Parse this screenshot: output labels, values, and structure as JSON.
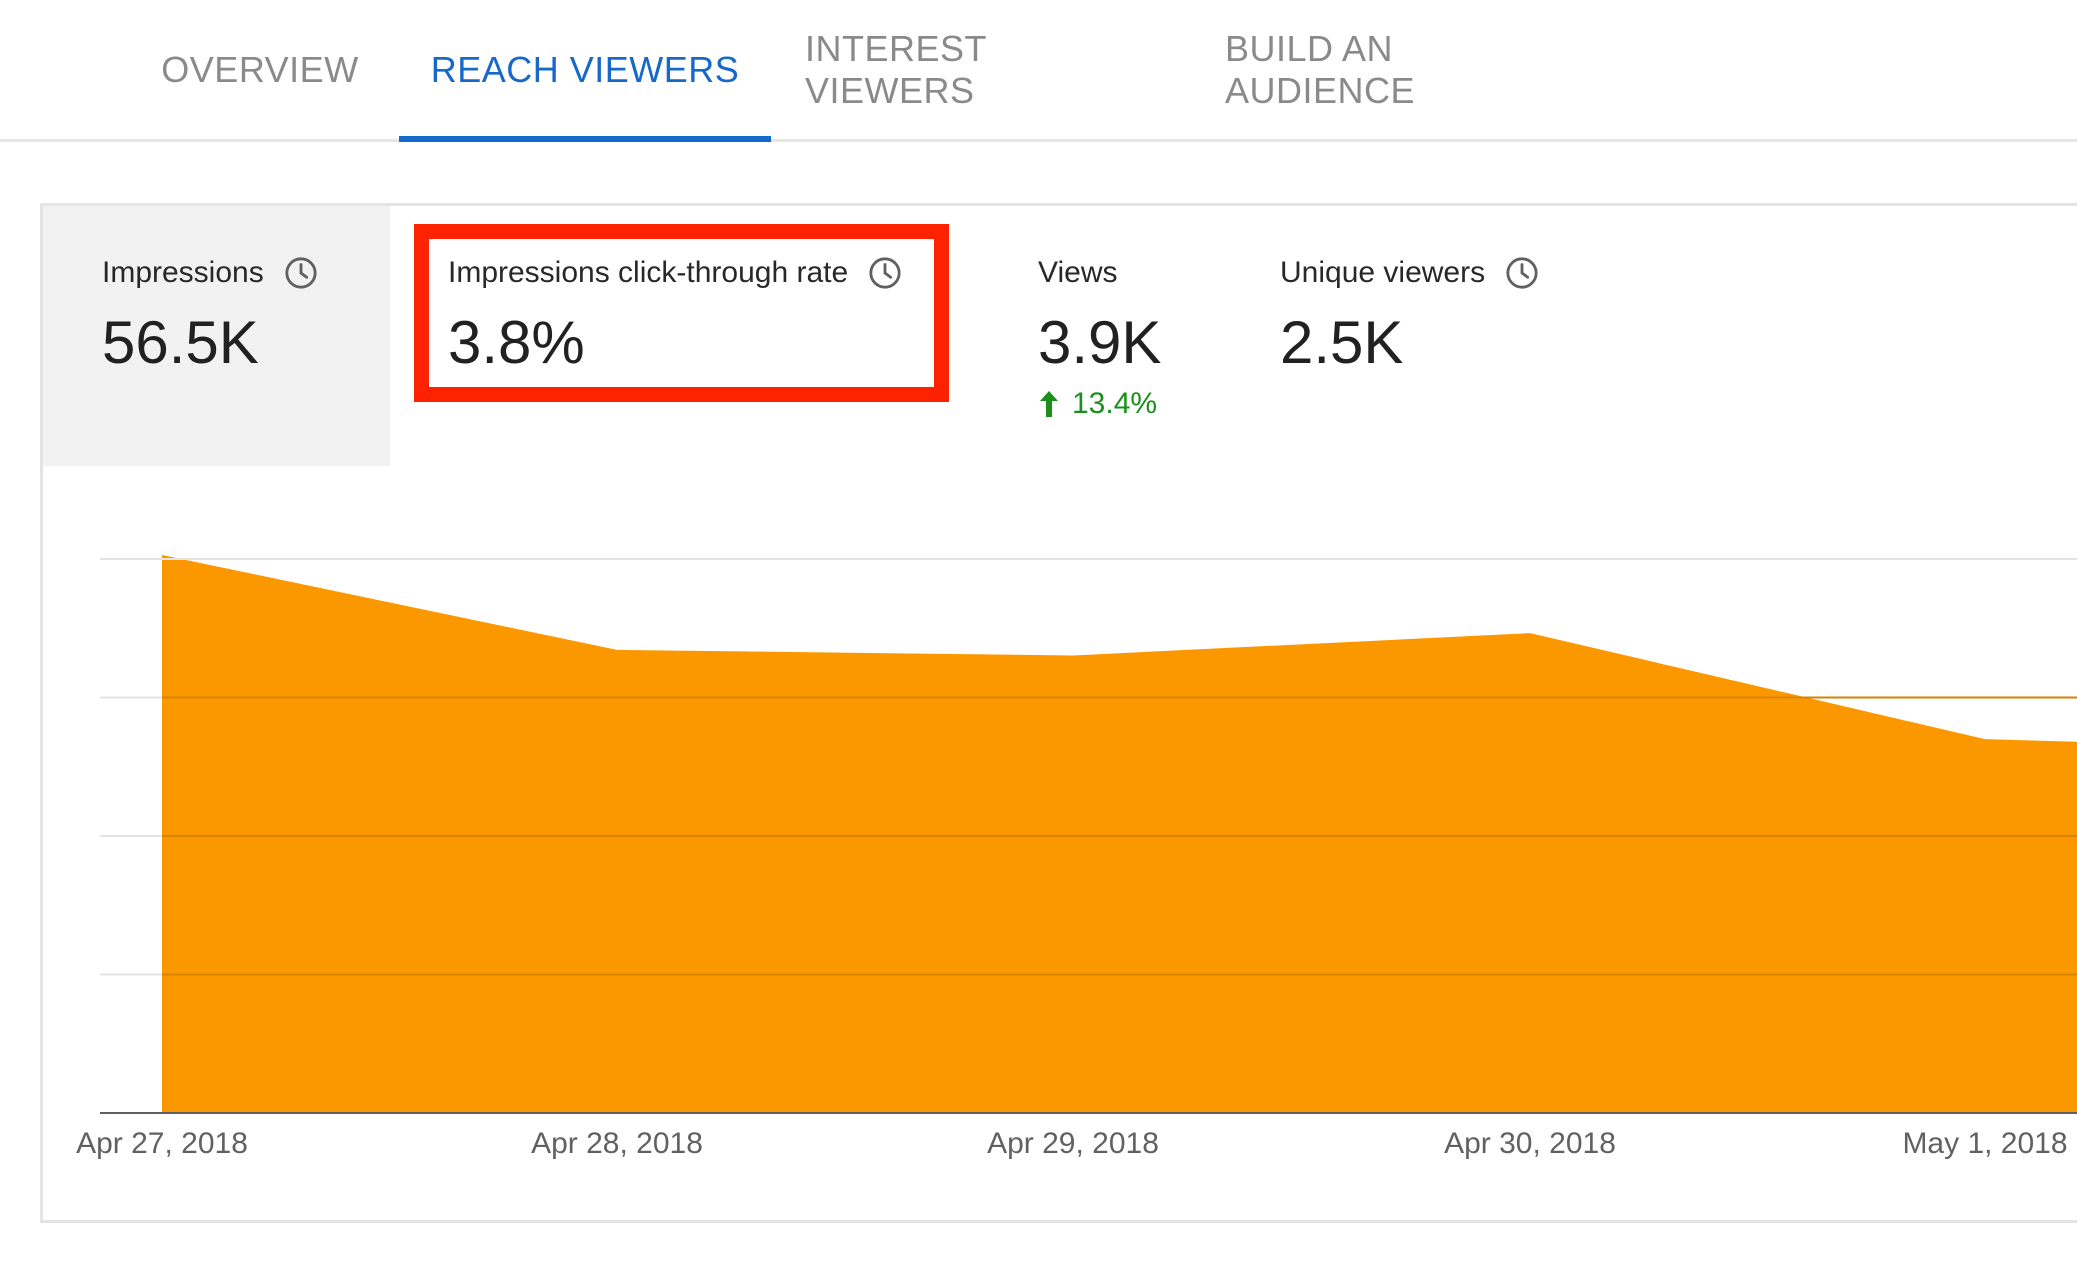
{
  "tabs": [
    {
      "label": "OVERVIEW",
      "active": false
    },
    {
      "label": "REACH VIEWERS",
      "active": true
    },
    {
      "label": "INTEREST VIEWERS",
      "active": false
    },
    {
      "label": "BUILD AN AUDIENCE",
      "active": false
    }
  ],
  "metrics": {
    "impressions": {
      "label": "Impressions",
      "value": "56.5K",
      "icon": "clock-icon",
      "selected": true
    },
    "ctr": {
      "label": "Impressions click-through rate",
      "value": "3.8%",
      "icon": "clock-icon",
      "highlighted": true
    },
    "views": {
      "label": "Views",
      "value": "3.9K",
      "change": "13.4%",
      "change_direction": "up",
      "change_color": "#1a8f1a"
    },
    "unique_viewers": {
      "label": "Unique viewers",
      "value": "2.5K",
      "icon": "clock-icon"
    }
  },
  "colors": {
    "accent": "#1669c9",
    "series": "#fb9800",
    "highlight": "#ff2200",
    "positive": "#1a8f1a"
  },
  "chart_data": {
    "type": "area",
    "x": [
      "Apr 27, 2018",
      "Apr 28, 2018",
      "Apr 29, 2018",
      "Apr 30, 2018",
      "May 1, 2018"
    ],
    "series": [
      {
        "values": [
          1.0,
          0.83,
          0.82,
          0.86,
          0.67
        ]
      }
    ],
    "grid": true,
    "ylim": [
      0,
      1.0
    ]
  }
}
